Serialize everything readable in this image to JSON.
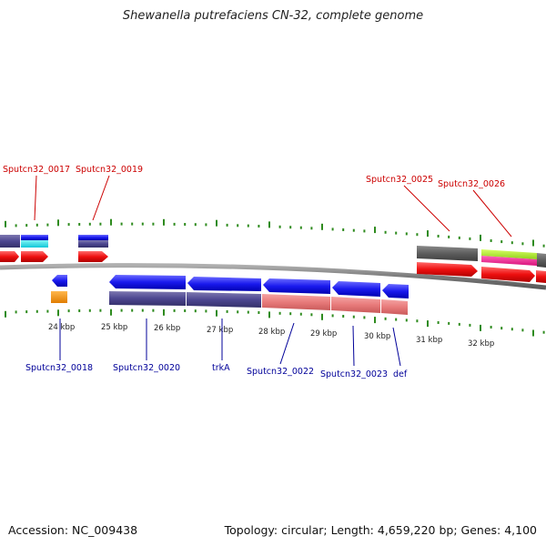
{
  "title": "Shewanella putrefaciens CN-32, complete genome",
  "footer": {
    "accession": "Accession: NC_009438",
    "summary": "Topology: circular; Length: 4,659,220 bp; Genes: 4,100"
  },
  "colors": {
    "forward_label": "#cc0000",
    "reverse_label": "#000099",
    "tick": "#2e8b1e",
    "backbone": "#888888"
  },
  "ticks": [
    "24 kbp",
    "25 kbp",
    "26 kbp",
    "27 kbp",
    "28 kbp",
    "29 kbp",
    "30 kbp",
    "31 kbp",
    "32 kbp"
  ],
  "forward_labels": [
    "Sputcn32_0017",
    "Sputcn32_0019",
    "Sputcn32_0025",
    "Sputcn32_0026"
  ],
  "reverse_labels": [
    "Sputcn32_0018",
    "Sputcn32_0020",
    "trkA",
    "Sputcn32_0022",
    "Sputcn32_0023",
    "def"
  ]
}
